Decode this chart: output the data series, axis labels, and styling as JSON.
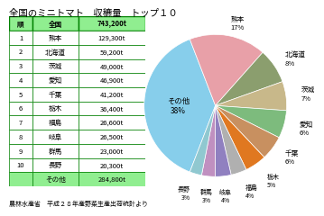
{
  "title": "全国のミニトマト　収穮量　トップ１０",
  "footer": "農林水産省　平成２８年産野菜生産出荷統計より",
  "table_header": [
    "順",
    "全国",
    "743,200t"
  ],
  "table_rows": [
    [
      "1",
      "熊本",
      "129,300t"
    ],
    [
      "2",
      "北海道",
      "59,200t"
    ],
    [
      "3",
      "茨城",
      "49,000t"
    ],
    [
      "4",
      "愛知",
      "46,900t"
    ],
    [
      "5",
      "千葉",
      "41,200t"
    ],
    [
      "6",
      "栃木",
      "36,400t"
    ],
    [
      "7",
      "福島",
      "26,600t"
    ],
    [
      "8",
      "岐阜",
      "26,500t"
    ],
    [
      "9",
      "群馬",
      "23,000t"
    ],
    [
      "10",
      "長野",
      "20,300t"
    ],
    [
      "",
      "その他",
      "284,800t"
    ]
  ],
  "pie_labels": [
    "その他",
    "熊本",
    "北海道",
    "茨城",
    "愛知",
    "千葉",
    "栃木",
    "福島",
    "岐阜",
    "群馬",
    "長野"
  ],
  "pie_values": [
    284800,
    129300,
    59200,
    49000,
    46900,
    41200,
    36400,
    26600,
    26500,
    23000,
    20300
  ],
  "pie_colors": [
    "#87CEEB",
    "#E8A0A8",
    "#8B9E6E",
    "#C8B88A",
    "#7DBB7D",
    "#C89060",
    "#E07820",
    "#B0B0B0",
    "#9080C0",
    "#C090C0",
    "#90C8D0"
  ],
  "pie_pct_labels": [
    "38%",
    "17%",
    "8%",
    "7%",
    "6%",
    "6%",
    "5%",
    "4%",
    "4%",
    "3%",
    "3%"
  ],
  "header_color": "#90EE90",
  "border_color": "#008000",
  "bg_color": "#FFFFFF"
}
